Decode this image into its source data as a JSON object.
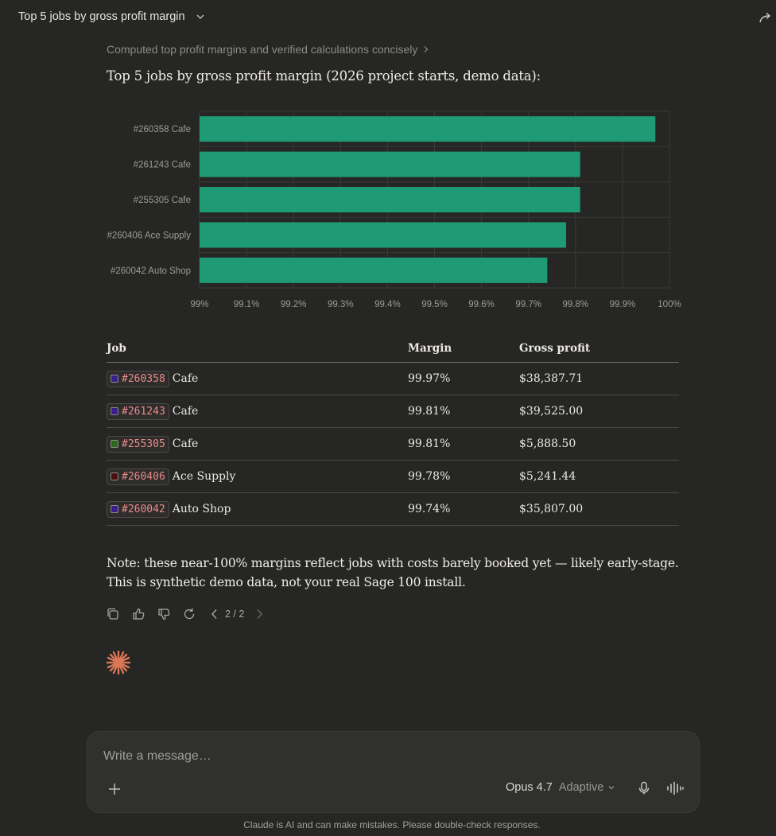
{
  "header": {
    "title": "Top 5 jobs by gross profit margin"
  },
  "thinking": {
    "label": "Computed top profit margins and verified calculations concisely"
  },
  "message": {
    "intro": "Top 5 jobs by gross profit margin (2026 project starts, demo data):",
    "note_line1": "Note: these near-100% margins reflect jobs with costs barely booked yet — likely early-stage.",
    "note_line2": "This is synthetic demo data, not your real Sage 100 install."
  },
  "chart_data": {
    "type": "bar",
    "orientation": "horizontal",
    "categories": [
      "#260358 Cafe",
      "#261243 Cafe",
      "#255305 Cafe",
      "#260406 Ace Supply",
      "#260042 Auto Shop"
    ],
    "values": [
      99.97,
      99.81,
      99.81,
      99.78,
      99.74
    ],
    "xlim": [
      99,
      100
    ],
    "xticks": [
      "99%",
      "99.1%",
      "99.2%",
      "99.3%",
      "99.4%",
      "99.5%",
      "99.6%",
      "99.7%",
      "99.8%",
      "99.9%",
      "100%"
    ],
    "bar_color": "#1e9b74",
    "grid": true
  },
  "table": {
    "headers": {
      "job": "Job",
      "margin": "Margin",
      "profit": "Gross profit"
    },
    "rows": [
      {
        "id": "#260358",
        "client": "Cafe",
        "margin": "99.97%",
        "profit": "$38,387.71",
        "swatch": "#3a1f8c"
      },
      {
        "id": "#261243",
        "client": "Cafe",
        "margin": "99.81%",
        "profit": "$39,525.00",
        "swatch": "#3a1f8c"
      },
      {
        "id": "#255305",
        "client": "Cafe",
        "margin": "99.81%",
        "profit": "$5,888.50",
        "swatch": "#2d6b1c"
      },
      {
        "id": "#260406",
        "client": "Ace Supply",
        "margin": "99.78%",
        "profit": "$5,241.44",
        "swatch": "#4a1010"
      },
      {
        "id": "#260042",
        "client": "Auto Shop",
        "margin": "99.74%",
        "profit": "$35,807.00",
        "swatch": "#3a1f8c"
      }
    ]
  },
  "actions": {
    "pager": "2 / 2"
  },
  "composer": {
    "placeholder": "Write a message…",
    "model": "Opus 4.7",
    "mode": "Adaptive"
  },
  "footer": {
    "disclaimer": "Claude is AI and can make mistakes. Please double-check responses."
  },
  "colors": {
    "background": "#262624",
    "accent": "#d97757",
    "bar": "#1e9b74",
    "code": "#e98a8a"
  }
}
